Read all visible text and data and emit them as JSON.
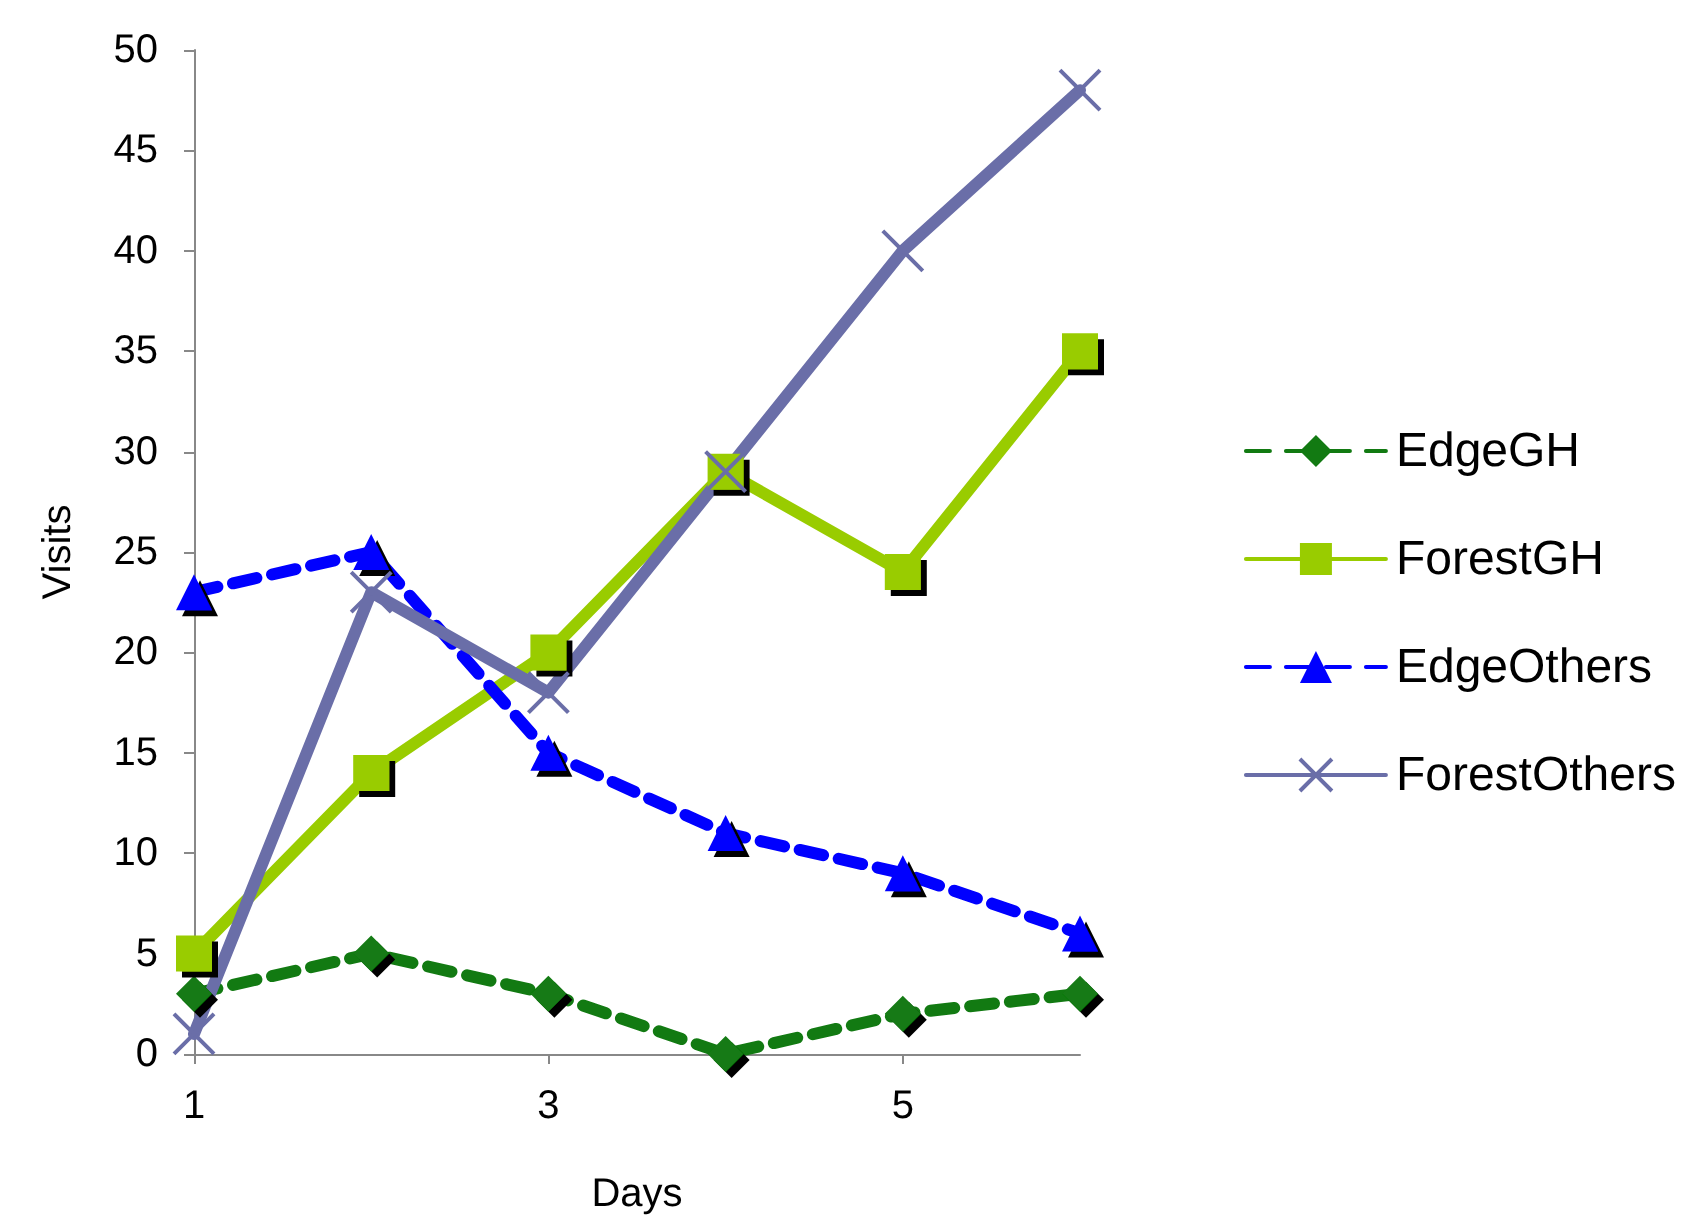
{
  "chart_data": {
    "type": "line",
    "xlabel": "Days",
    "ylabel": "Visits",
    "x": [
      1,
      2,
      3,
      4,
      5,
      6
    ],
    "xlim": [
      1,
      6
    ],
    "xticks": [
      1,
      3,
      5
    ],
    "ylim": [
      0,
      50
    ],
    "yticks": [
      0,
      5,
      10,
      15,
      20,
      25,
      30,
      35,
      40,
      45,
      50
    ],
    "grid": false,
    "legend": "right",
    "series": [
      {
        "name": "EdgeGH",
        "color": "#127a12",
        "marker": "diamond",
        "line_style": "dashed",
        "values": [
          3,
          5,
          3,
          0,
          2,
          3
        ]
      },
      {
        "name": "ForestGH",
        "color": "#99cc00",
        "marker": "square",
        "line_style": "solid",
        "values": [
          5,
          14,
          20,
          29,
          24,
          35
        ]
      },
      {
        "name": "EdgeOthers",
        "color": "#0000ff",
        "marker": "triangle",
        "line_style": "dashed",
        "values": [
          23,
          25,
          15,
          11,
          9,
          6
        ]
      },
      {
        "name": "ForestOthers",
        "color": "#6a6ea8",
        "marker": "cross",
        "line_style": "solid",
        "values": [
          1,
          23,
          18,
          29,
          40,
          48
        ]
      }
    ]
  }
}
